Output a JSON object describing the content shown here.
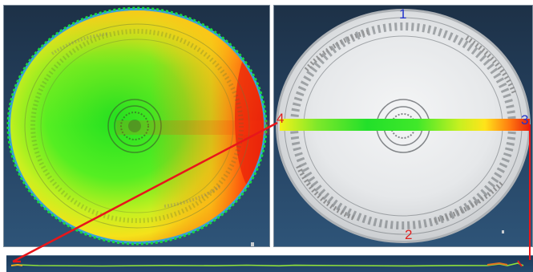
{
  "markers": {
    "m1": "1",
    "m2": "2",
    "m3": "3",
    "m4": "4"
  },
  "colors": {
    "marker_blue": "#2233cc",
    "marker_red": "#e0201e",
    "line_red": "#e8161a",
    "background_navy": "#24405e"
  }
}
